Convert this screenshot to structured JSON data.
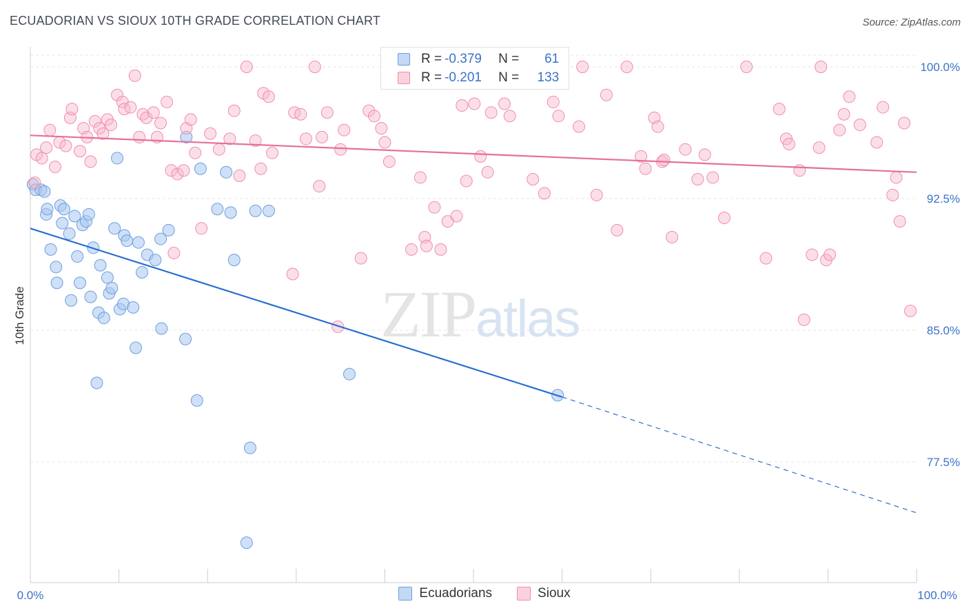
{
  "title": "ECUADORIAN VS SIOUX 10TH GRADE CORRELATION CHART",
  "source": "Source: ZipAtlas.com",
  "watermark_zip": "ZIP",
  "watermark_atlas": "atlas",
  "legend": {
    "rows": [
      {
        "r_label": "R =",
        "r_value": "-0.379",
        "n_label": "N =",
        "n_value": "61",
        "color": "#a9c6ef"
      },
      {
        "r_label": "R =",
        "r_value": "-0.201",
        "n_label": "N =",
        "n_value": "133",
        "color": "#f6b7cb"
      }
    ]
  },
  "bottom_legend": [
    {
      "label": "Ecuadorians",
      "color": "#a9c6ef"
    },
    {
      "label": "Sioux",
      "color": "#f6b7cb"
    }
  ],
  "chart_data": {
    "type": "scatter",
    "ylabel": "10th Grade",
    "xlabel": "",
    "xlim": [
      0,
      100
    ],
    "ylim": [
      71.5,
      101.5
    ],
    "x_tick_labels": [
      "0.0%",
      "100.0%"
    ],
    "y_ticks": [
      77.5,
      85.0,
      92.5,
      100.0
    ],
    "y_tick_labels": [
      "77.5%",
      "85.0%",
      "92.5%",
      "100.0%"
    ],
    "grid": true,
    "series": [
      {
        "name": "Ecuadorians",
        "color": "#6a9fe0",
        "trend": {
          "x0": 0,
          "y0": 90.8,
          "x1": 60,
          "y1": 81.2,
          "dash_to": 100,
          "dash_y": 74.6
        },
        "points": [
          [
            0.3,
            93.3
          ],
          [
            0.6,
            93.0
          ],
          [
            1.2,
            93.0
          ],
          [
            1.6,
            92.9
          ],
          [
            1.8,
            91.6
          ],
          [
            1.9,
            91.9
          ],
          [
            2.3,
            89.6
          ],
          [
            2.9,
            88.6
          ],
          [
            3.0,
            87.7
          ],
          [
            3.4,
            92.1
          ],
          [
            3.6,
            91.1
          ],
          [
            3.8,
            91.9
          ],
          [
            4.4,
            90.5
          ],
          [
            4.6,
            86.7
          ],
          [
            5.0,
            91.5
          ],
          [
            5.3,
            89.2
          ],
          [
            5.6,
            87.7
          ],
          [
            5.9,
            91.0
          ],
          [
            6.3,
            91.2
          ],
          [
            6.6,
            91.6
          ],
          [
            6.8,
            86.9
          ],
          [
            7.1,
            89.7
          ],
          [
            7.5,
            82.0
          ],
          [
            7.7,
            86.0
          ],
          [
            7.9,
            88.7
          ],
          [
            8.3,
            85.7
          ],
          [
            8.7,
            88.0
          ],
          [
            8.9,
            87.1
          ],
          [
            9.2,
            87.4
          ],
          [
            9.5,
            90.8
          ],
          [
            9.8,
            94.8
          ],
          [
            10.1,
            86.2
          ],
          [
            10.5,
            86.5
          ],
          [
            10.6,
            90.4
          ],
          [
            10.9,
            90.1
          ],
          [
            11.6,
            86.3
          ],
          [
            11.9,
            84.0
          ],
          [
            12.2,
            90.0
          ],
          [
            12.6,
            88.3
          ],
          [
            13.2,
            89.3
          ],
          [
            14.1,
            89.0
          ],
          [
            14.7,
            90.2
          ],
          [
            14.8,
            85.1
          ],
          [
            15.6,
            90.7
          ],
          [
            17.5,
            84.5
          ],
          [
            17.6,
            96.0
          ],
          [
            18.8,
            81.0
          ],
          [
            19.2,
            94.2
          ],
          [
            21.1,
            91.9
          ],
          [
            22.1,
            94.0
          ],
          [
            22.6,
            91.7
          ],
          [
            23.0,
            89.0
          ],
          [
            24.4,
            72.9
          ],
          [
            24.8,
            78.3
          ],
          [
            25.4,
            91.8
          ],
          [
            26.9,
            91.8
          ],
          [
            36.0,
            82.5
          ],
          [
            59.5,
            81.3
          ]
        ]
      },
      {
        "name": "Sioux",
        "color": "#f28cab",
        "trend": {
          "x0": 0,
          "y0": 96.1,
          "x1": 100,
          "y1": 94.0
        },
        "points": [
          [
            0.5,
            93.4
          ],
          [
            0.7,
            95.0
          ],
          [
            1.3,
            94.8
          ],
          [
            1.8,
            95.4
          ],
          [
            2.2,
            96.4
          ],
          [
            2.8,
            94.3
          ],
          [
            3.3,
            95.7
          ],
          [
            4.0,
            95.5
          ],
          [
            4.5,
            97.1
          ],
          [
            4.7,
            97.6
          ],
          [
            5.6,
            95.2
          ],
          [
            6.0,
            96.5
          ],
          [
            6.4,
            96.0
          ],
          [
            6.8,
            94.6
          ],
          [
            7.3,
            96.9
          ],
          [
            7.8,
            96.5
          ],
          [
            8.2,
            96.2
          ],
          [
            8.7,
            97.0
          ],
          [
            9.1,
            96.7
          ],
          [
            9.8,
            98.4
          ],
          [
            10.4,
            98.0
          ],
          [
            10.6,
            97.6
          ],
          [
            11.3,
            97.7
          ],
          [
            11.8,
            99.5
          ],
          [
            12.3,
            96.0
          ],
          [
            12.7,
            97.3
          ],
          [
            13.1,
            97.1
          ],
          [
            13.9,
            97.4
          ],
          [
            14.3,
            96.0
          ],
          [
            14.7,
            96.8
          ],
          [
            15.4,
            98.0
          ],
          [
            15.9,
            94.1
          ],
          [
            16.2,
            89.4
          ],
          [
            16.6,
            93.9
          ],
          [
            17.3,
            94.1
          ],
          [
            17.6,
            96.5
          ],
          [
            18.1,
            97.0
          ],
          [
            18.6,
            95.1
          ],
          [
            19.3,
            90.8
          ],
          [
            20.3,
            96.2
          ],
          [
            21.3,
            95.3
          ],
          [
            22.5,
            95.9
          ],
          [
            23.0,
            97.5
          ],
          [
            23.6,
            93.8
          ],
          [
            24.4,
            100.0
          ],
          [
            25.4,
            95.8
          ],
          [
            26.0,
            94.2
          ],
          [
            26.3,
            98.5
          ],
          [
            26.9,
            98.3
          ],
          [
            27.3,
            95.1
          ],
          [
            29.6,
            88.2
          ],
          [
            29.8,
            97.4
          ],
          [
            30.5,
            97.3
          ],
          [
            31.1,
            95.9
          ],
          [
            32.1,
            100.0
          ],
          [
            32.6,
            93.2
          ],
          [
            32.9,
            96.0
          ],
          [
            33.5,
            97.4
          ],
          [
            34.7,
            85.2
          ],
          [
            35.0,
            95.3
          ],
          [
            35.4,
            96.4
          ],
          [
            37.3,
            89.1
          ],
          [
            38.2,
            97.5
          ],
          [
            38.8,
            97.2
          ],
          [
            39.6,
            96.5
          ],
          [
            40.0,
            95.7
          ],
          [
            40.5,
            94.6
          ],
          [
            41.8,
            100.0
          ],
          [
            43.0,
            89.6
          ],
          [
            44.0,
            93.7
          ],
          [
            44.5,
            90.3
          ],
          [
            44.7,
            89.8
          ],
          [
            45.6,
            92.0
          ],
          [
            46.3,
            89.6
          ],
          [
            47.1,
            91.2
          ],
          [
            48.1,
            91.5
          ],
          [
            48.7,
            97.8
          ],
          [
            49.2,
            93.5
          ],
          [
            50.1,
            97.9
          ],
          [
            50.8,
            94.9
          ],
          [
            51.6,
            94.0
          ],
          [
            52.0,
            97.4
          ],
          [
            53.5,
            97.9
          ],
          [
            54.1,
            97.2
          ],
          [
            56.7,
            93.6
          ],
          [
            58.0,
            92.8
          ],
          [
            59.0,
            98.0
          ],
          [
            59.6,
            97.2
          ],
          [
            61.9,
            96.6
          ],
          [
            62.3,
            100.0
          ],
          [
            63.9,
            92.7
          ],
          [
            65.0,
            98.4
          ],
          [
            66.2,
            90.7
          ],
          [
            67.3,
            100.0
          ],
          [
            68.9,
            94.9
          ],
          [
            69.4,
            94.2
          ],
          [
            70.4,
            97.1
          ],
          [
            70.8,
            96.6
          ],
          [
            71.3,
            94.6
          ],
          [
            71.5,
            94.7
          ],
          [
            72.4,
            90.3
          ],
          [
            73.9,
            95.3
          ],
          [
            75.3,
            93.6
          ],
          [
            76.1,
            95.0
          ],
          [
            77.0,
            93.7
          ],
          [
            78.3,
            91.4
          ],
          [
            80.8,
            100.0
          ],
          [
            83.0,
            89.1
          ],
          [
            84.5,
            97.6
          ],
          [
            85.3,
            95.9
          ],
          [
            85.6,
            95.6
          ],
          [
            86.8,
            94.1
          ],
          [
            87.3,
            85.6
          ],
          [
            88.2,
            89.3
          ],
          [
            89.0,
            95.4
          ],
          [
            89.2,
            100.0
          ],
          [
            89.8,
            89.0
          ],
          [
            90.2,
            89.3
          ],
          [
            91.3,
            96.4
          ],
          [
            91.8,
            97.3
          ],
          [
            92.4,
            98.3
          ],
          [
            93.6,
            96.7
          ],
          [
            95.5,
            95.7
          ],
          [
            96.2,
            97.7
          ],
          [
            97.3,
            92.7
          ],
          [
            97.7,
            93.7
          ],
          [
            98.1,
            91.2
          ],
          [
            98.6,
            96.8
          ],
          [
            99.3,
            86.1
          ]
        ]
      }
    ]
  }
}
